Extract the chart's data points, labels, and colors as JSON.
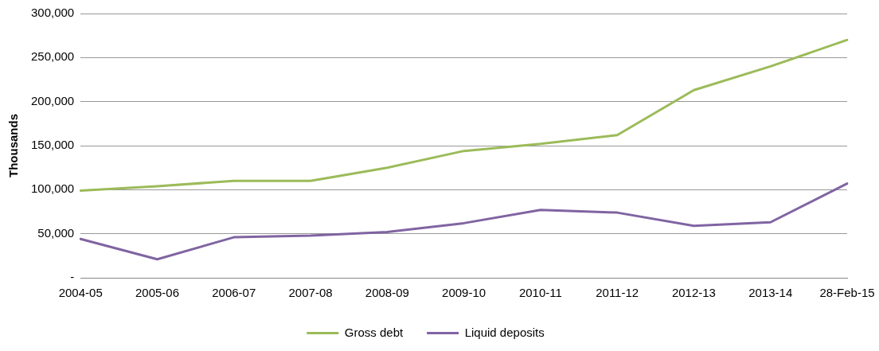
{
  "chart_data": {
    "type": "line",
    "ylabel": "Thousands",
    "categories": [
      "2004-05",
      "2005-06",
      "2006-07",
      "2007-08",
      "2008-09",
      "2009-10",
      "2010-11",
      "2011-12",
      "2012-13",
      "2013-14",
      "28-Feb-15"
    ],
    "series": [
      {
        "name": "Gross debt",
        "color": "#9bbb59",
        "values": [
          99000,
          104000,
          110000,
          110000,
          125000,
          144000,
          152000,
          162000,
          213000,
          240000,
          270000
        ]
      },
      {
        "name": "Liquid deposits",
        "color": "#8064a2",
        "values": [
          44000,
          21000,
          46000,
          48000,
          52000,
          62000,
          77000,
          74000,
          59000,
          63000,
          107000
        ]
      }
    ],
    "ylim": [
      0,
      300000
    ],
    "yticks": [
      {
        "value": 0,
        "label": "-"
      },
      {
        "value": 50000,
        "label": "50,000"
      },
      {
        "value": 100000,
        "label": "100,000"
      },
      {
        "value": 150000,
        "label": "150,000"
      },
      {
        "value": 200000,
        "label": "200,000"
      },
      {
        "value": 250000,
        "label": "250,000"
      },
      {
        "value": 300000,
        "label": "300,000"
      }
    ],
    "grid": "y",
    "legend": "bottom",
    "marker": "none",
    "line_style": "solid"
  }
}
